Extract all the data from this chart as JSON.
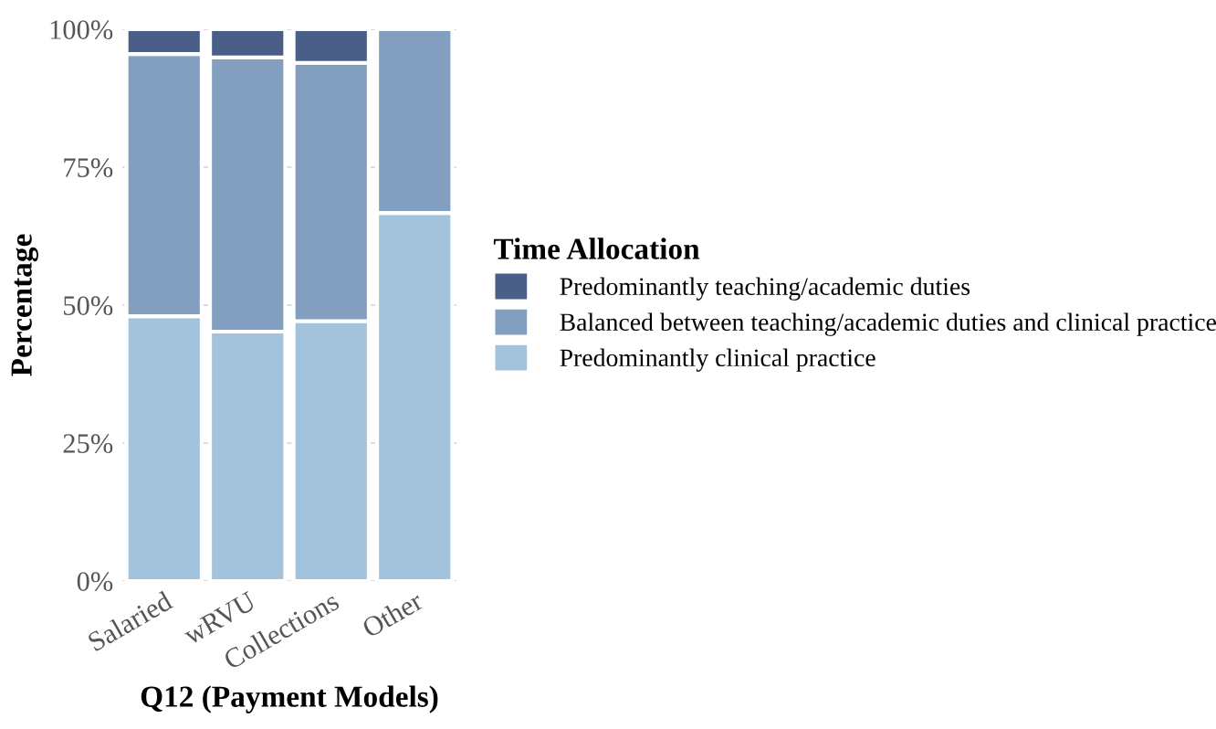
{
  "chart_data": {
    "type": "bar",
    "stacked": true,
    "xlabel": "Q12 (Payment Models)",
    "ylabel": "Percentage",
    "legend_title": "Time Allocation",
    "categories": [
      "Salaried",
      "wRVU",
      "Collections",
      "Other"
    ],
    "series": [
      {
        "name": "Predominantly clinical practice",
        "color": "#a3c2dc",
        "values": [
          48,
          45.2,
          47.1,
          66.7
        ]
      },
      {
        "name": "Balanced between teaching/academic duties and clinical practice",
        "color": "#829fc0",
        "values": [
          47.5,
          49.7,
          46.8,
          33.3
        ]
      },
      {
        "name": "Predominantly teaching/academic duties",
        "color": "#4a5f88",
        "values": [
          4.5,
          5.1,
          6.1,
          null
        ]
      }
    ],
    "ylim": [
      0,
      100
    ],
    "yticks": [
      {
        "value": 0,
        "label": "0%"
      },
      {
        "value": 25,
        "label": "25%"
      },
      {
        "value": 50,
        "label": "50%"
      },
      {
        "value": 75,
        "label": "75%"
      },
      {
        "value": 100,
        "label": "100%"
      }
    ],
    "grid": true,
    "legend": "right"
  }
}
